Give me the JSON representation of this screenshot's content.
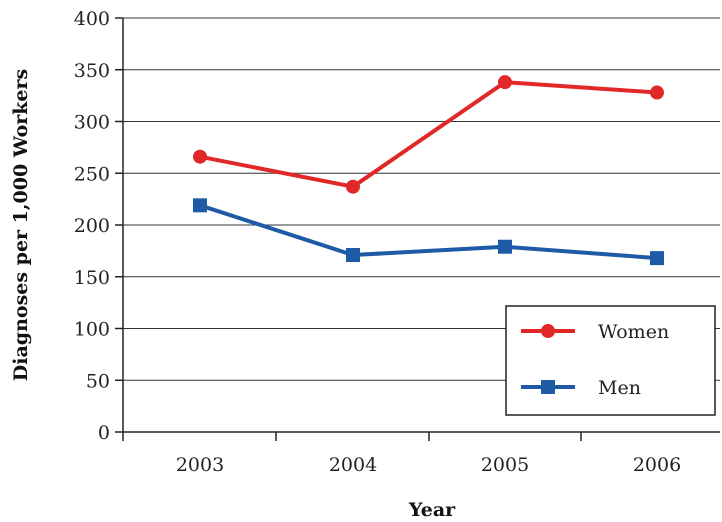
{
  "chart_data": {
    "type": "line",
    "title": "",
    "xlabel": "Year",
    "ylabel": "Diagnoses per 1,000 Workers",
    "categories": [
      "2003",
      "2004",
      "2005",
      "2006"
    ],
    "ylim": [
      0,
      400
    ],
    "yticks": [
      0,
      50,
      100,
      150,
      200,
      250,
      300,
      350,
      400
    ],
    "grid": true,
    "legend_position": "bottom-right",
    "series": [
      {
        "name": "Women",
        "values": [
          266,
          237,
          338,
          328
        ],
        "color": "#e02828",
        "marker": "circle"
      },
      {
        "name": "Men",
        "values": [
          219,
          171,
          179,
          168
        ],
        "color": "#1f5aa6",
        "marker": "square"
      }
    ]
  }
}
